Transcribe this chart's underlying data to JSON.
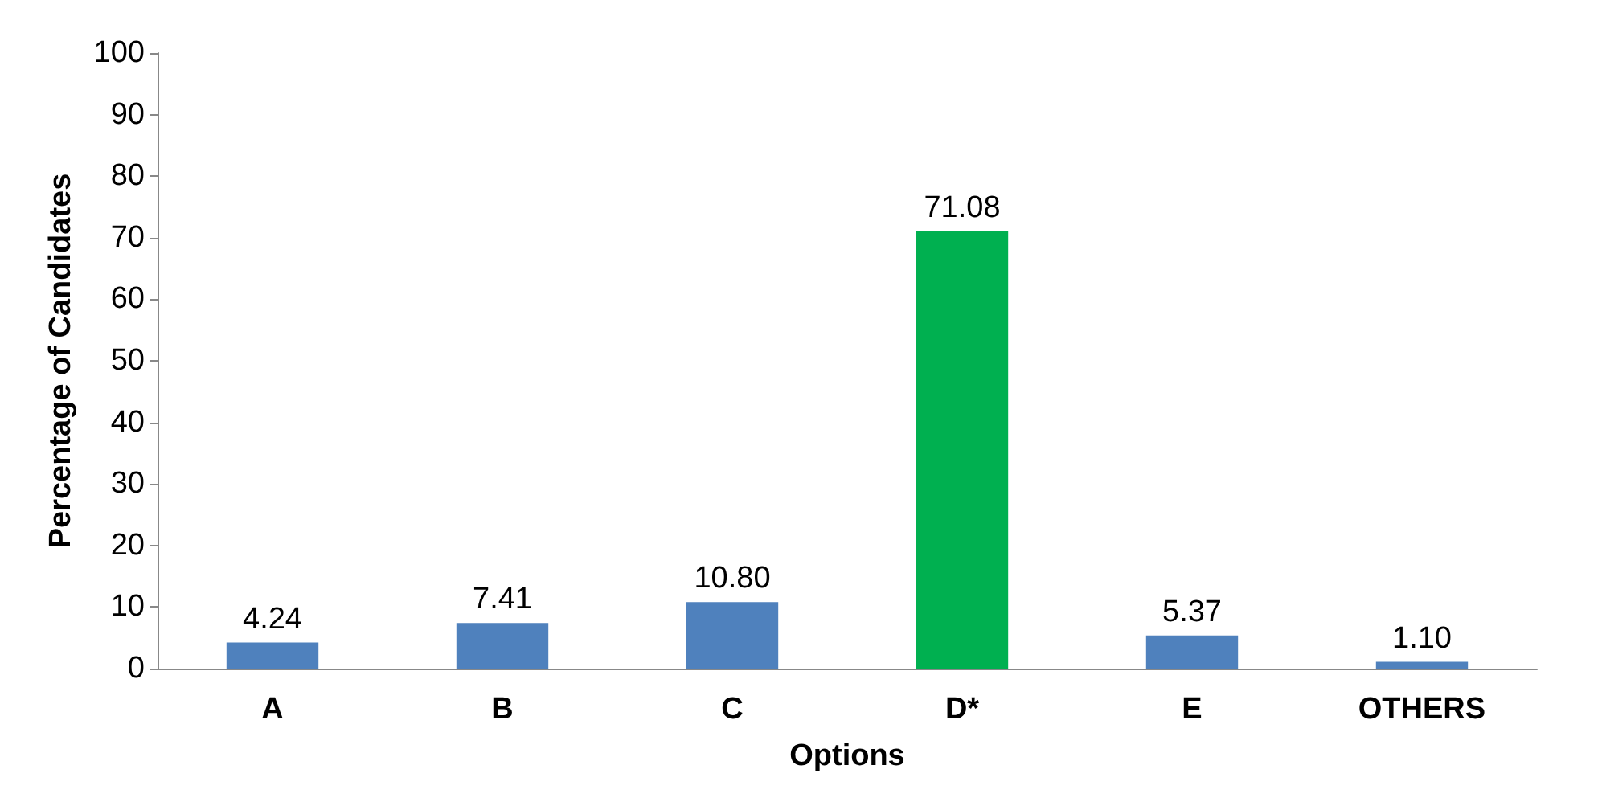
{
  "chart_data": {
    "type": "bar",
    "xlabel": "Options",
    "ylabel": "Percentage of Candidates",
    "categories": [
      "A",
      "B",
      "C",
      "D*",
      "E",
      "OTHERS"
    ],
    "values": [
      4.24,
      7.41,
      10.8,
      71.08,
      5.37,
      1.1
    ],
    "value_labels": [
      "4.24",
      "7.41",
      "10.80",
      "71.08",
      "5.37",
      "1.10"
    ],
    "colors": [
      "#4f81bd",
      "#4f81bd",
      "#4f81bd",
      "#00b050",
      "#4f81bd",
      "#4f81bd"
    ],
    "ylim": [
      0,
      100
    ],
    "yticks": [
      0,
      10,
      20,
      30,
      40,
      50,
      60,
      70,
      80,
      90,
      100
    ],
    "grid": false
  }
}
